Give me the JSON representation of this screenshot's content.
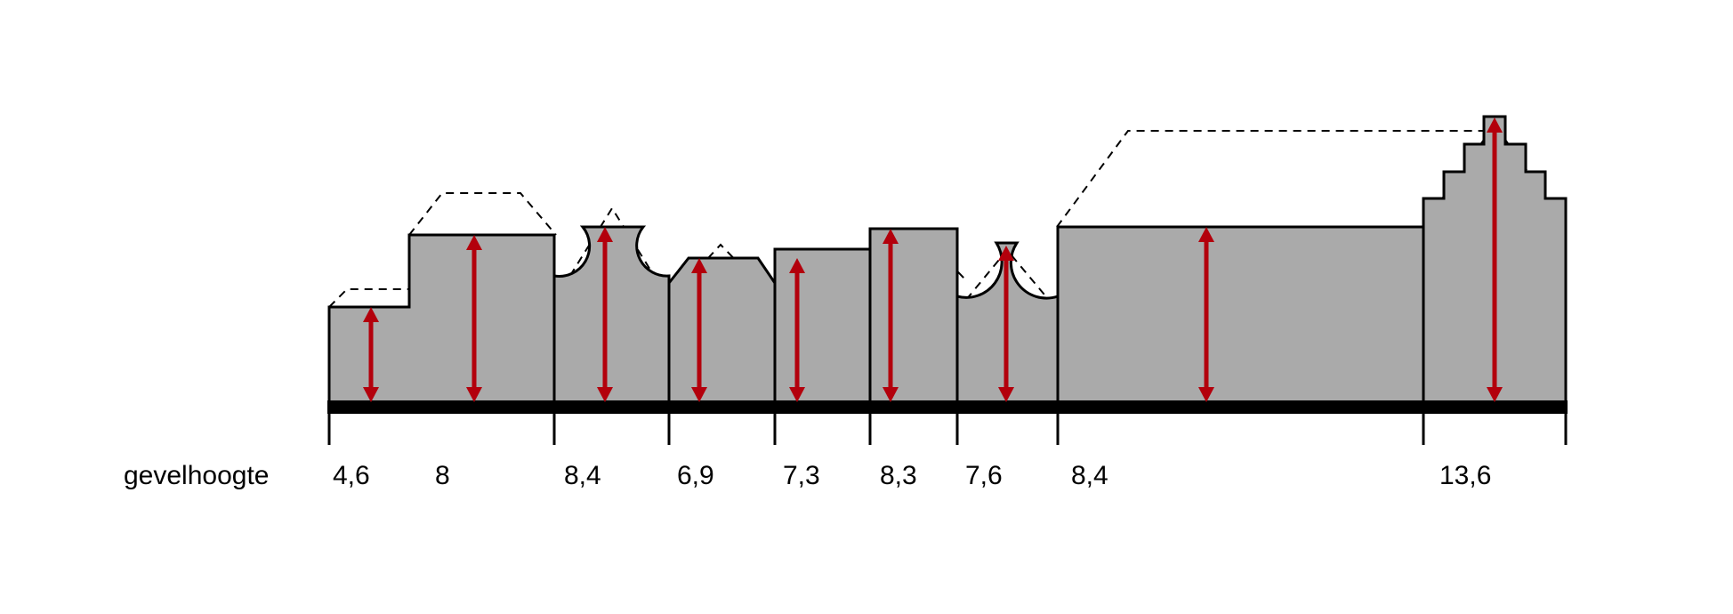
{
  "row_label": "gevelhoogte",
  "colors": {
    "facade_fill": "#aaaaaa",
    "arrow": "#b3000c",
    "outline": "#000000"
  },
  "heights": [
    {
      "value": "4,6"
    },
    {
      "value": "8"
    },
    {
      "value": "8,4"
    },
    {
      "value": "6,9"
    },
    {
      "value": "7,3"
    },
    {
      "value": "8,3"
    },
    {
      "value": "7,6"
    },
    {
      "value": "8,4"
    },
    {
      "value": "13,6"
    }
  ]
}
